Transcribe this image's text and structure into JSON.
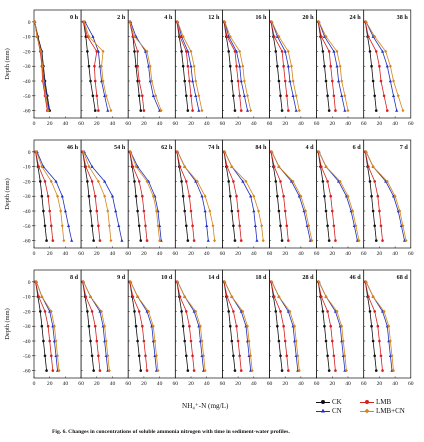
{
  "figure": {
    "caption": "Fig. 6. Changes in concentrations of soluble ammonia nitrogen with time in sediment-water profiles.",
    "xlabel": "NH₄⁺-N (mg/L)",
    "ylabel": "Depth (mm)"
  },
  "legend": [
    {
      "name": "CK",
      "color": "#111111",
      "marker": "circle"
    },
    {
      "name": "CN",
      "color": "#1f2fbf",
      "marker": "triangle"
    },
    {
      "name": "LMB",
      "color": "#d42020",
      "marker": "circle"
    },
    {
      "name": "LMB+CN",
      "color": "#d4861e",
      "marker": "diamond"
    }
  ],
  "chart_data": {
    "type": "line",
    "orientation": "depth-profile",
    "depths": [
      0,
      -10,
      -20,
      -30,
      -40,
      -50,
      -60
    ],
    "ylim": [
      -65,
      8
    ],
    "yticks": [
      0,
      -10,
      -20,
      -30,
      -40,
      -50,
      -60
    ],
    "series_names": [
      "CK",
      "CN",
      "LMB",
      "LMB+CN"
    ],
    "rows": [
      {
        "xlim": [
          0,
          60
        ],
        "xticks": [
          "0",
          "20",
          "40",
          "60",
          "20",
          "40",
          "60",
          "20",
          "40",
          "60",
          "20",
          "40",
          "60",
          "20",
          "40",
          "60",
          "20",
          "40",
          "60",
          "20",
          "40",
          "60",
          "20",
          "40",
          "60"
        ],
        "panels": [
          {
            "label": "0 h",
            "CK": [
              1,
              5,
              10,
              12,
              14,
              17,
              20
            ],
            "CN": [
              1,
              4,
              9,
              11,
              13,
              16,
              19
            ],
            "LMB": [
              1,
              4,
              8,
              10,
              11,
              14,
              17
            ],
            "LMB+CN": [
              1,
              4,
              9,
              11,
              12,
              15,
              18
            ]
          },
          {
            "label": "2 h",
            "CK": [
              3,
              6,
              8,
              10,
              12,
              15,
              18
            ],
            "CN": [
              5,
              15,
              22,
              24,
              26,
              30,
              34
            ],
            "LMB": [
              3,
              8,
              20,
              17,
              18,
              20,
              22
            ],
            "LMB+CN": [
              4,
              10,
              28,
              26,
              28,
              32,
              38
            ]
          },
          {
            "label": "4 h",
            "CK": [
              2,
              6,
              8,
              10,
              12,
              14,
              16
            ],
            "CN": [
              3,
              10,
              22,
              26,
              28,
              32,
              40
            ],
            "LMB": [
              2,
              6,
              12,
              12,
              14,
              18,
              20
            ],
            "LMB+CN": [
              2,
              8,
              24,
              28,
              30,
              35,
              42
            ]
          },
          {
            "label": "12 h",
            "CK": [
              2,
              5,
              8,
              10,
              12,
              14,
              16
            ],
            "CN": [
              3,
              8,
              16,
              20,
              22,
              26,
              30
            ],
            "LMB": [
              2,
              6,
              14,
              16,
              18,
              20,
              22
            ],
            "LMB+CN": [
              3,
              10,
              20,
              24,
              26,
              30,
              34
            ]
          },
          {
            "label": "16 h",
            "CK": [
              2,
              5,
              8,
              10,
              12,
              14,
              16
            ],
            "CN": [
              3,
              8,
              18,
              22,
              24,
              28,
              32
            ],
            "LMB": [
              2,
              6,
              16,
              18,
              20,
              22,
              24
            ],
            "LMB+CN": [
              3,
              10,
              22,
              26,
              28,
              32,
              36
            ]
          },
          {
            "label": "20 h",
            "CK": [
              2,
              5,
              8,
              10,
              12,
              14,
              16
            ],
            "CN": [
              3,
              10,
              20,
              24,
              26,
              30,
              34
            ],
            "LMB": [
              2,
              6,
              16,
              18,
              20,
              22,
              24
            ],
            "LMB+CN": [
              3,
              12,
              24,
              28,
              30,
              34,
              38
            ]
          },
          {
            "label": "24 h",
            "CK": [
              2,
              5,
              8,
              10,
              12,
              14,
              16
            ],
            "CN": [
              3,
              10,
              22,
              26,
              28,
              32,
              36
            ],
            "LMB": [
              2,
              6,
              16,
              18,
              20,
              22,
              24
            ],
            "LMB+CN": [
              3,
              12,
              26,
              30,
              32,
              36,
              40
            ]
          },
          {
            "label": "38 h",
            "CK": [
              2,
              5,
              8,
              10,
              12,
              14,
              16
            ],
            "CN": [
              3,
              12,
              24,
              30,
              34,
              38,
              42
            ],
            "LMB": [
              2,
              6,
              16,
              20,
              22,
              26,
              30
            ],
            "LMB+CN": [
              3,
              14,
              28,
              34,
              38,
              44,
              50
            ]
          }
        ]
      },
      {
        "xlim": [
          0,
          60
        ],
        "xticks": [
          "0",
          "20",
          "40",
          "60",
          "20",
          "40",
          "60",
          "20",
          "40",
          "60",
          "20",
          "40",
          "60",
          "20",
          "40",
          "60",
          "20",
          "40",
          "60",
          "20",
          "40",
          "60",
          "20",
          "40",
          "60"
        ],
        "panels": [
          {
            "label": "46 h",
            "CK": [
              2,
              5,
              8,
              10,
              12,
              14,
              16
            ],
            "CN": [
              4,
              12,
              28,
              36,
              40,
              44,
              48
            ],
            "LMB": [
              2,
              6,
              14,
              18,
              20,
              22,
              24
            ],
            "LMB+CN": [
              3,
              10,
              22,
              30,
              34,
              36,
              38
            ]
          },
          {
            "label": "54 h",
            "CK": [
              2,
              5,
              8,
              10,
              12,
              14,
              16
            ],
            "CN": [
              4,
              14,
              30,
              40,
              44,
              48,
              52
            ],
            "LMB": [
              2,
              6,
              14,
              18,
              20,
              22,
              24
            ],
            "LMB+CN": [
              3,
              10,
              22,
              30,
              34,
              36,
              38
            ]
          },
          {
            "label": "62 h",
            "CK": [
              2,
              5,
              8,
              10,
              12,
              14,
              16
            ],
            "CN": [
              3,
              12,
              26,
              34,
              38,
              40,
              42
            ],
            "LMB": [
              2,
              6,
              14,
              18,
              20,
              22,
              24
            ],
            "LMB+CN": [
              3,
              10,
              24,
              32,
              36,
              38,
              40
            ]
          },
          {
            "label": "74 h",
            "CK": [
              2,
              5,
              8,
              10,
              12,
              14,
              16
            ],
            "CN": [
              3,
              12,
              26,
              34,
              38,
              40,
              42
            ],
            "LMB": [
              2,
              6,
              14,
              18,
              20,
              22,
              24
            ],
            "LMB+CN": [
              3,
              12,
              28,
              38,
              44,
              48,
              50
            ]
          },
          {
            "label": "84 h",
            "CK": [
              2,
              5,
              8,
              10,
              12,
              14,
              16
            ],
            "CN": [
              3,
              12,
              26,
              36,
              40,
              42,
              44
            ],
            "LMB": [
              2,
              6,
              14,
              18,
              20,
              22,
              24
            ],
            "LMB+CN": [
              3,
              12,
              30,
              40,
              46,
              50,
              52
            ]
          },
          {
            "label": "4 d",
            "CK": [
              2,
              5,
              8,
              10,
              12,
              14,
              16
            ],
            "CN": [
              3,
              12,
              28,
              38,
              44,
              48,
              52
            ],
            "LMB": [
              2,
              6,
              14,
              18,
              20,
              22,
              24
            ],
            "LMB+CN": [
              3,
              12,
              30,
              40,
              46,
              50,
              54
            ]
          },
          {
            "label": "6 d",
            "CK": [
              2,
              5,
              8,
              10,
              12,
              14,
              16
            ],
            "CN": [
              3,
              12,
              28,
              38,
              44,
              48,
              52
            ],
            "LMB": [
              2,
              6,
              14,
              18,
              20,
              22,
              24
            ],
            "LMB+CN": [
              3,
              12,
              30,
              40,
              46,
              50,
              54
            ]
          },
          {
            "label": "7 d",
            "CK": [
              2,
              5,
              8,
              10,
              12,
              14,
              16
            ],
            "CN": [
              3,
              12,
              28,
              38,
              44,
              48,
              52
            ],
            "LMB": [
              2,
              6,
              14,
              18,
              20,
              22,
              24
            ],
            "LMB+CN": [
              3,
              12,
              30,
              40,
              46,
              50,
              54
            ]
          }
        ]
      },
      {
        "xlim": [
          0,
          60
        ],
        "xticks": [
          "0",
          "20",
          "40",
          "60",
          "20",
          "40",
          "60",
          "20",
          "40",
          "60",
          "20",
          "40",
          "60",
          "20",
          "40",
          "60",
          "20",
          "40",
          "60",
          "20",
          "40",
          "60",
          "20",
          "40",
          "60"
        ],
        "panels": [
          {
            "label": "8 d",
            "CK": [
              2,
              5,
              8,
              10,
              12,
              14,
              16
            ],
            "CN": [
              3,
              10,
              20,
              24,
              26,
              28,
              30
            ],
            "LMB": [
              2,
              6,
              14,
              18,
              20,
              22,
              24
            ],
            "LMB+CN": [
              3,
              10,
              22,
              26,
              28,
              30,
              32
            ]
          },
          {
            "label": "9 d",
            "CK": [
              2,
              5,
              8,
              10,
              12,
              14,
              16
            ],
            "CN": [
              3,
              12,
              24,
              28,
              30,
              32,
              34
            ],
            "LMB": [
              2,
              6,
              14,
              18,
              20,
              22,
              24
            ],
            "LMB+CN": [
              3,
              12,
              26,
              30,
              32,
              34,
              36
            ]
          },
          {
            "label": "10 d",
            "CK": [
              2,
              5,
              8,
              10,
              12,
              14,
              16
            ],
            "CN": [
              3,
              12,
              24,
              30,
              32,
              34,
              36
            ],
            "LMB": [
              2,
              6,
              14,
              18,
              20,
              22,
              24
            ],
            "LMB+CN": [
              3,
              12,
              26,
              32,
              34,
              36,
              38
            ]
          },
          {
            "label": "14 d",
            "CK": [
              2,
              5,
              8,
              10,
              12,
              14,
              16
            ],
            "CN": [
              3,
              12,
              24,
              30,
              32,
              34,
              36
            ],
            "LMB": [
              2,
              6,
              14,
              18,
              20,
              22,
              24
            ],
            "LMB+CN": [
              3,
              12,
              26,
              32,
              34,
              36,
              38
            ]
          },
          {
            "label": "18 d",
            "CK": [
              2,
              5,
              8,
              10,
              12,
              14,
              16
            ],
            "CN": [
              3,
              12,
              24,
              30,
              32,
              34,
              36
            ],
            "LMB": [
              2,
              6,
              14,
              18,
              20,
              22,
              24
            ],
            "LMB+CN": [
              3,
              12,
              26,
              32,
              34,
              36,
              38
            ]
          },
          {
            "label": "28 d",
            "CK": [
              2,
              5,
              8,
              10,
              12,
              14,
              16
            ],
            "CN": [
              3,
              12,
              24,
              30,
              32,
              34,
              36
            ],
            "LMB": [
              2,
              6,
              14,
              18,
              20,
              22,
              24
            ],
            "LMB+CN": [
              3,
              12,
              26,
              32,
              34,
              36,
              38
            ]
          },
          {
            "label": "46 d",
            "CK": [
              2,
              5,
              8,
              10,
              12,
              14,
              16
            ],
            "CN": [
              3,
              12,
              24,
              30,
              32,
              34,
              36
            ],
            "LMB": [
              2,
              6,
              14,
              18,
              20,
              22,
              24
            ],
            "LMB+CN": [
              3,
              12,
              26,
              32,
              34,
              36,
              38
            ]
          },
          {
            "label": "68 d",
            "CK": [
              2,
              5,
              8,
              10,
              12,
              14,
              16
            ],
            "CN": [
              3,
              12,
              24,
              30,
              32,
              34,
              36
            ],
            "LMB": [
              2,
              6,
              14,
              18,
              20,
              22,
              24
            ],
            "LMB+CN": [
              3,
              12,
              26,
              32,
              34,
              36,
              38
            ]
          }
        ]
      }
    ]
  }
}
